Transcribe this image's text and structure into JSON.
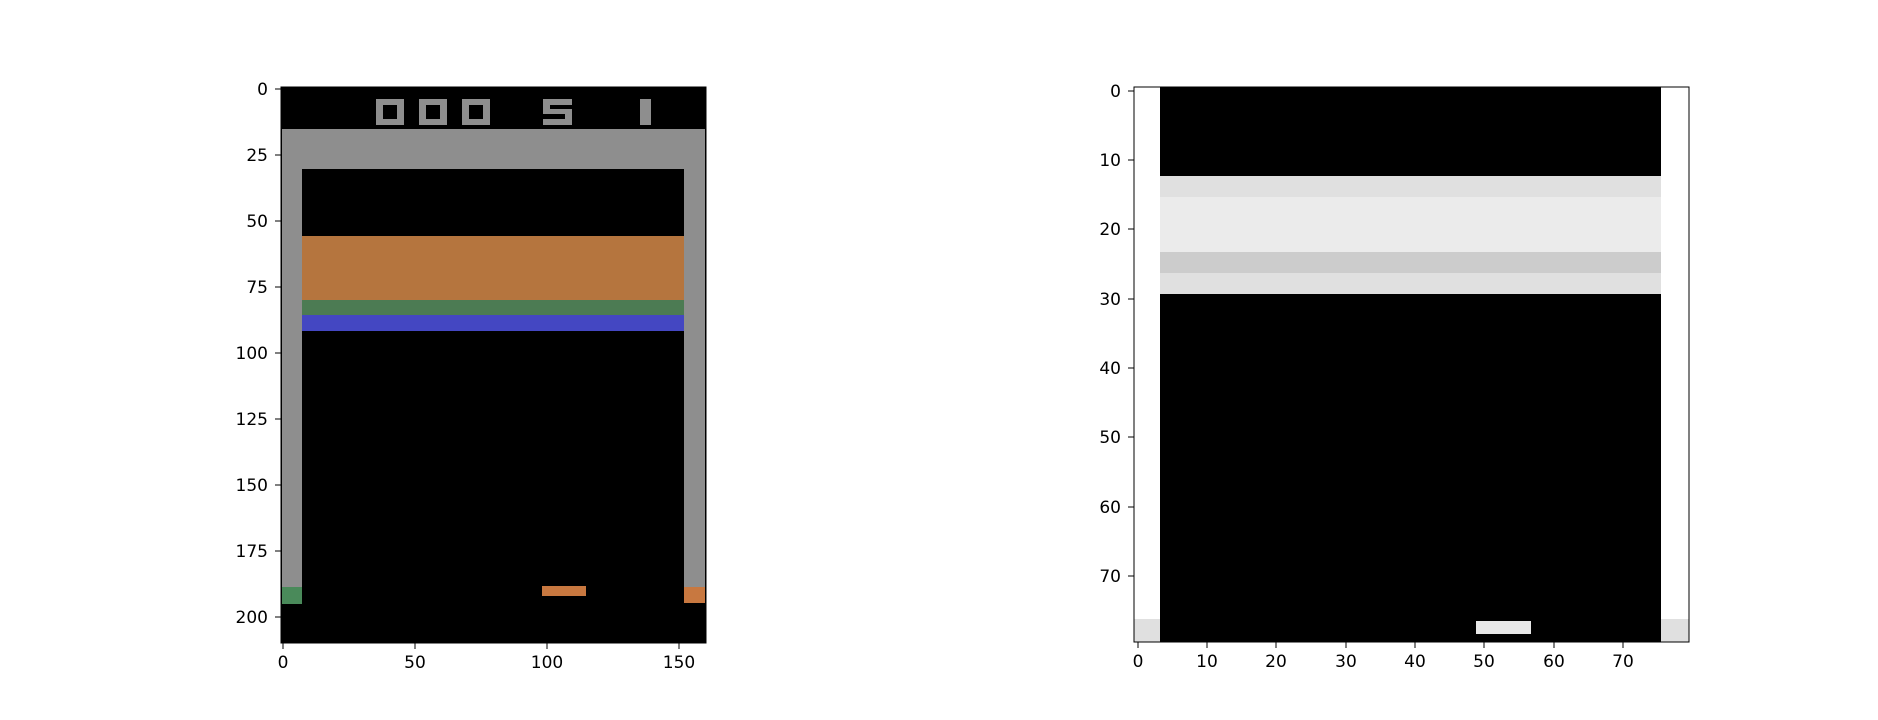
{
  "figure": {
    "panels": [
      {
        "name": "raw-frame",
        "colors": {
          "background": "#000000",
          "wall": "#8e8e8e",
          "score_digits": "#8e8e8e",
          "brick_orange": "#b5753e",
          "brick_green": "#4c7b53",
          "brick_blue": "#4447c2",
          "paddle": "#c87840",
          "wall_tip_left": "#4a8a5a",
          "wall_tip_right": "#c87840"
        },
        "score": {
          "digits": [
            "0",
            "0",
            "0",
            "5",
            "1"
          ]
        },
        "x_ticks": [
          "0",
          "50",
          "100",
          "150"
        ],
        "y_ticks": [
          "0",
          "25",
          "50",
          "75",
          "100",
          "125",
          "150",
          "175",
          "200"
        ]
      },
      {
        "name": "preprocessed-frame",
        "colors": {
          "background": "#000000",
          "wall": "#ffffff",
          "brick_light": "#ebebeb",
          "brick_mid": "#e0e0e0",
          "brick_dark": "#cccccc",
          "paddle": "#e8e8e8",
          "wall_tip": "#e0e0e0"
        },
        "x_ticks": [
          "0",
          "10",
          "20",
          "30",
          "40",
          "50",
          "60",
          "70"
        ],
        "y_ticks": [
          "0",
          "10",
          "20",
          "30",
          "40",
          "50",
          "60",
          "70"
        ]
      }
    ]
  }
}
